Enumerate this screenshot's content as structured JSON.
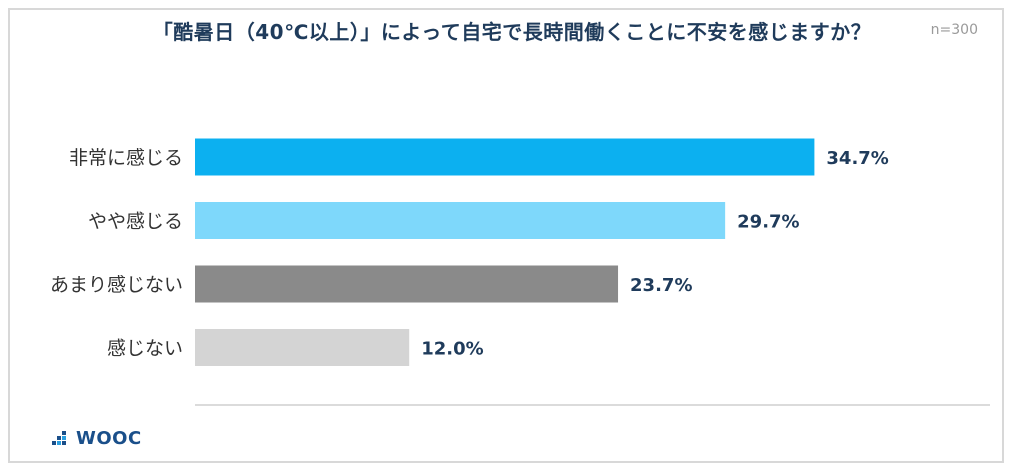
{
  "header": {
    "title": "「酷暑日（40℃以上）」によって自宅で長時間働くことに不安を感じますか？",
    "sample_size": "n=300"
  },
  "footer": {
    "brand": "WOOC"
  },
  "colors": {
    "title": "#1f3b5b",
    "value_label": "#1f3b5b",
    "category_label": "#333333",
    "bars": [
      "#0cb0f0",
      "#7ed8fb",
      "#8a8a8a",
      "#d4d4d4"
    ]
  },
  "chart_data": {
    "type": "bar",
    "orientation": "horizontal",
    "categories": [
      "非常に感じる",
      "やや感じる",
      "あまり感じない",
      "感じない"
    ],
    "values": [
      34.7,
      29.7,
      23.7,
      12.0
    ],
    "value_labels": [
      "34.7%",
      "29.7%",
      "23.7%",
      "12.0%"
    ],
    "unit": "%",
    "xlim": [
      0,
      44
    ],
    "grid": false,
    "legend": "none"
  }
}
